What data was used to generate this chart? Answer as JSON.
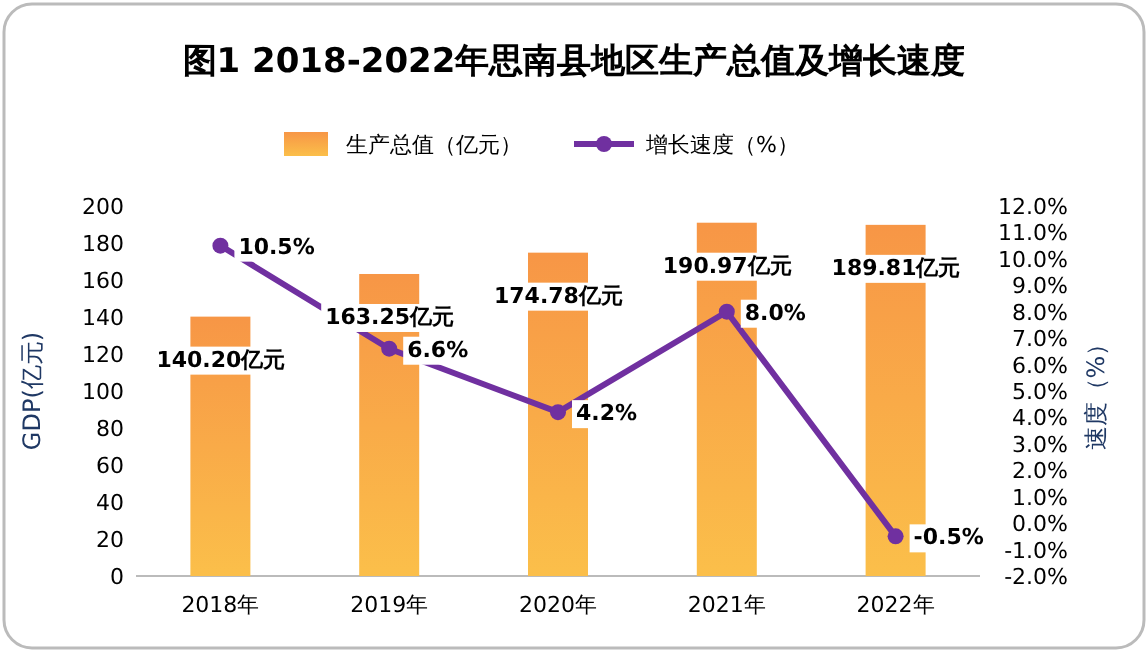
{
  "chart_data": {
    "type": "bar",
    "title": "图1  2018-2022年思南县地区生产总值及增长速度",
    "categories": [
      "2018年",
      "2019年",
      "2020年",
      "2021年",
      "2022年"
    ],
    "series": [
      {
        "name": "生产总值（亿元）",
        "color": "#f79646",
        "values": [
          140.2,
          163.25,
          174.78,
          190.97,
          189.81
        ],
        "value_labels": [
          "140.20亿元",
          "163.25亿元",
          "174.78亿元",
          "190.97亿元",
          "189.81亿元"
        ]
      },
      {
        "name": "增长速度（%）",
        "type": "line",
        "axis": "y2",
        "color": "#7030a0",
        "marker": "circle",
        "values": [
          10.5,
          6.6,
          4.2,
          8.0,
          -0.5
        ],
        "value_labels": [
          "10.5%",
          "6.6%",
          "4.2%",
          "8.0%",
          "-0.5%"
        ]
      }
    ],
    "ylabel": "GDP(亿元)",
    "y2label": "速度（%）",
    "ylim": [
      0,
      200
    ],
    "yticks": [
      0,
      20,
      40,
      60,
      80,
      100,
      120,
      140,
      160,
      180,
      200
    ],
    "y2lim": [
      -2,
      12
    ],
    "y2ticks": [
      {
        "value": -2,
        "label": "-2.0%"
      },
      {
        "value": -1,
        "label": "-1.0%"
      },
      {
        "value": 0,
        "label": "0.0%"
      },
      {
        "value": 1,
        "label": "1.0%"
      },
      {
        "value": 2,
        "label": "2.0%"
      },
      {
        "value": 3,
        "label": "3.0%"
      },
      {
        "value": 4,
        "label": "4.0%"
      },
      {
        "value": 5,
        "label": "5.0%"
      },
      {
        "value": 6,
        "label": "6.0%"
      },
      {
        "value": 7,
        "label": "7.0%"
      },
      {
        "value": 8,
        "label": "8.0%"
      },
      {
        "value": 9,
        "label": "9.0%"
      },
      {
        "value": 10,
        "label": "10.0%"
      },
      {
        "value": 11,
        "label": "11.0%"
      },
      {
        "value": 12,
        "label": "12.0%"
      }
    ],
    "legend": "top",
    "grid": false
  }
}
